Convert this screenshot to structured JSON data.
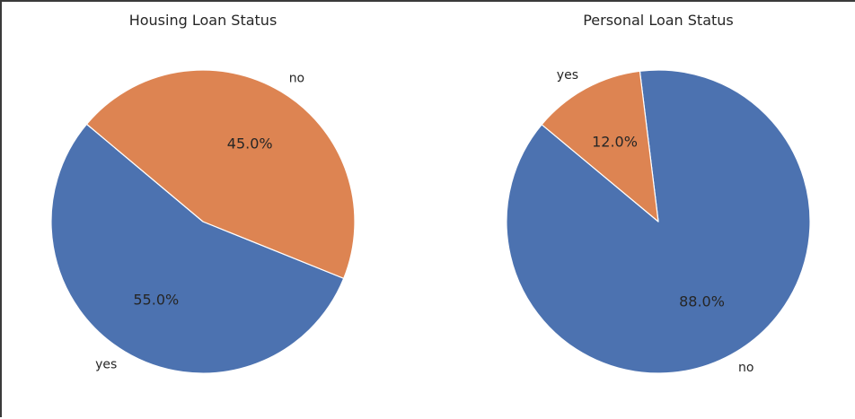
{
  "chart_data": [
    {
      "type": "pie",
      "title": "Housing Loan Status",
      "categories": [
        "yes",
        "no"
      ],
      "values": [
        55.0,
        45.0
      ],
      "percent_labels": [
        "55.0%",
        "45.0%"
      ],
      "colors": [
        "#4c72b0",
        "#dd8452"
      ],
      "start_angle_deg": 140,
      "direction": "counterclockwise"
    },
    {
      "type": "pie",
      "title": "Personal Loan Status",
      "categories": [
        "no",
        "yes"
      ],
      "values": [
        88.0,
        12.0
      ],
      "percent_labels": [
        "88.0%",
        "12.0%"
      ],
      "colors": [
        "#4c72b0",
        "#dd8452"
      ],
      "start_angle_deg": 97,
      "direction": "clockwise"
    }
  ]
}
